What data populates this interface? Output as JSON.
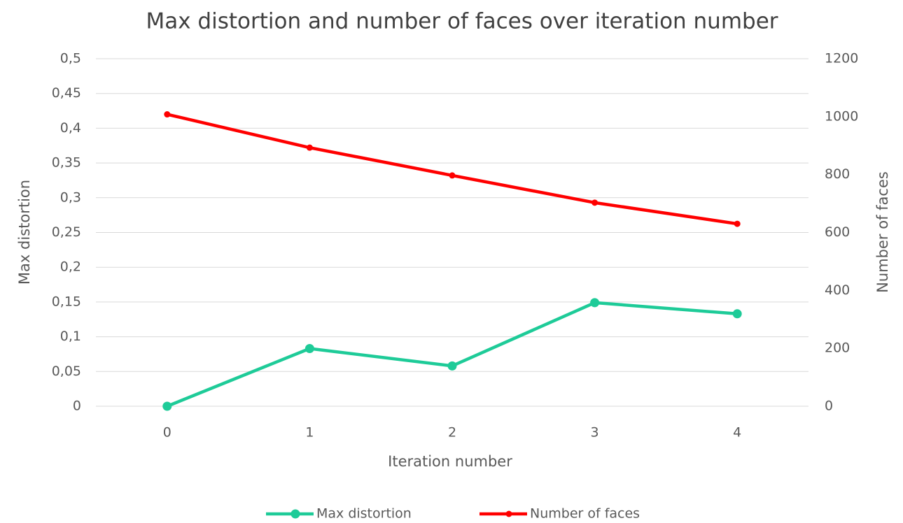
{
  "chart_data": {
    "type": "line",
    "title": "Max distortion and number of faces over iteration number",
    "x_label": "Iteration number",
    "y_label": "Max distortion",
    "y2_label": "Number of faces",
    "categories": [
      "0",
      "1",
      "2",
      "3",
      "4"
    ],
    "series": [
      {
        "name": "Max distortion",
        "color": "#1ecb98",
        "values": [
          0,
          0.083,
          0.058,
          0.149,
          0.133
        ]
      },
      {
        "name": "Number of faces",
        "color": "#ff0000",
        "axis": "y2",
        "values": [
          1008,
          893,
          797,
          703,
          630
        ]
      }
    ],
    "ylim": [
      0,
      0.5
    ],
    "yticks": [
      0,
      {
        "value": 0.05,
        "label": "0,05"
      },
      {
        "value": 0.1,
        "label": "0,1"
      },
      {
        "value": 0.15,
        "label": "0,15"
      },
      {
        "value": 0.2,
        "label": "0,2"
      },
      {
        "value": 0.25,
        "label": "0,25"
      },
      {
        "value": 0.3,
        "label": "0,3"
      },
      {
        "value": 0.35,
        "label": "0,35"
      },
      {
        "value": 0.4,
        "label": "0,4"
      },
      {
        "value": 0.45,
        "label": "0,45"
      },
      {
        "value": 0.5,
        "label": "0,5"
      }
    ],
    "y2lim": [
      0,
      1200
    ],
    "y2ticks": [
      0,
      200,
      400,
      600,
      800,
      1000,
      1200
    ],
    "grid": true,
    "legend": "bottom"
  }
}
